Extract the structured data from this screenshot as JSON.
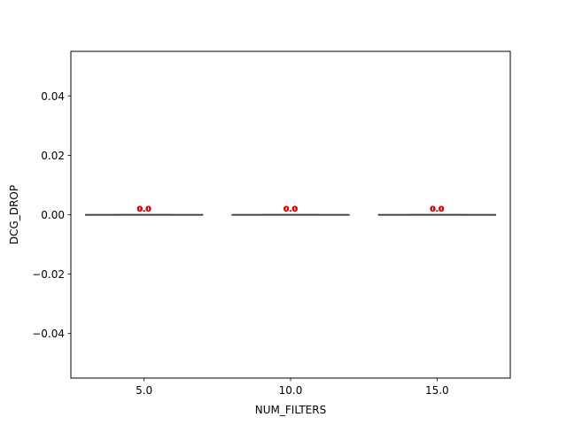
{
  "chart_data": {
    "type": "box",
    "xlabel": "NUM_FILTERS",
    "ylabel": "DCG_DROP",
    "ylim": [
      -0.055,
      0.055
    ],
    "yticks": [
      -0.04,
      -0.02,
      0.0,
      0.02,
      0.04
    ],
    "ytick_labels": [
      "−0.04",
      "−0.02",
      "0.00",
      "0.02",
      "0.04"
    ],
    "categories": [
      "5.0",
      "10.0",
      "15.0"
    ],
    "boxes": [
      {
        "category": "5.0",
        "min": 0.0,
        "q1": 0.0,
        "median": 0.0,
        "q3": 0.0,
        "max": 0.0,
        "mean": 0.0,
        "label": "0.0"
      },
      {
        "category": "10.0",
        "min": 0.0,
        "q1": 0.0,
        "median": 0.0,
        "q3": 0.0,
        "max": 0.0,
        "mean": 0.0,
        "label": "0.0"
      },
      {
        "category": "15.0",
        "min": 0.0,
        "q1": 0.0,
        "median": 0.0,
        "q3": 0.0,
        "max": 0.0,
        "mean": 0.0,
        "label": "0.0"
      }
    ],
    "grid": false,
    "label_color": "#dd0000",
    "box_line_color": "#3f3f3f"
  }
}
